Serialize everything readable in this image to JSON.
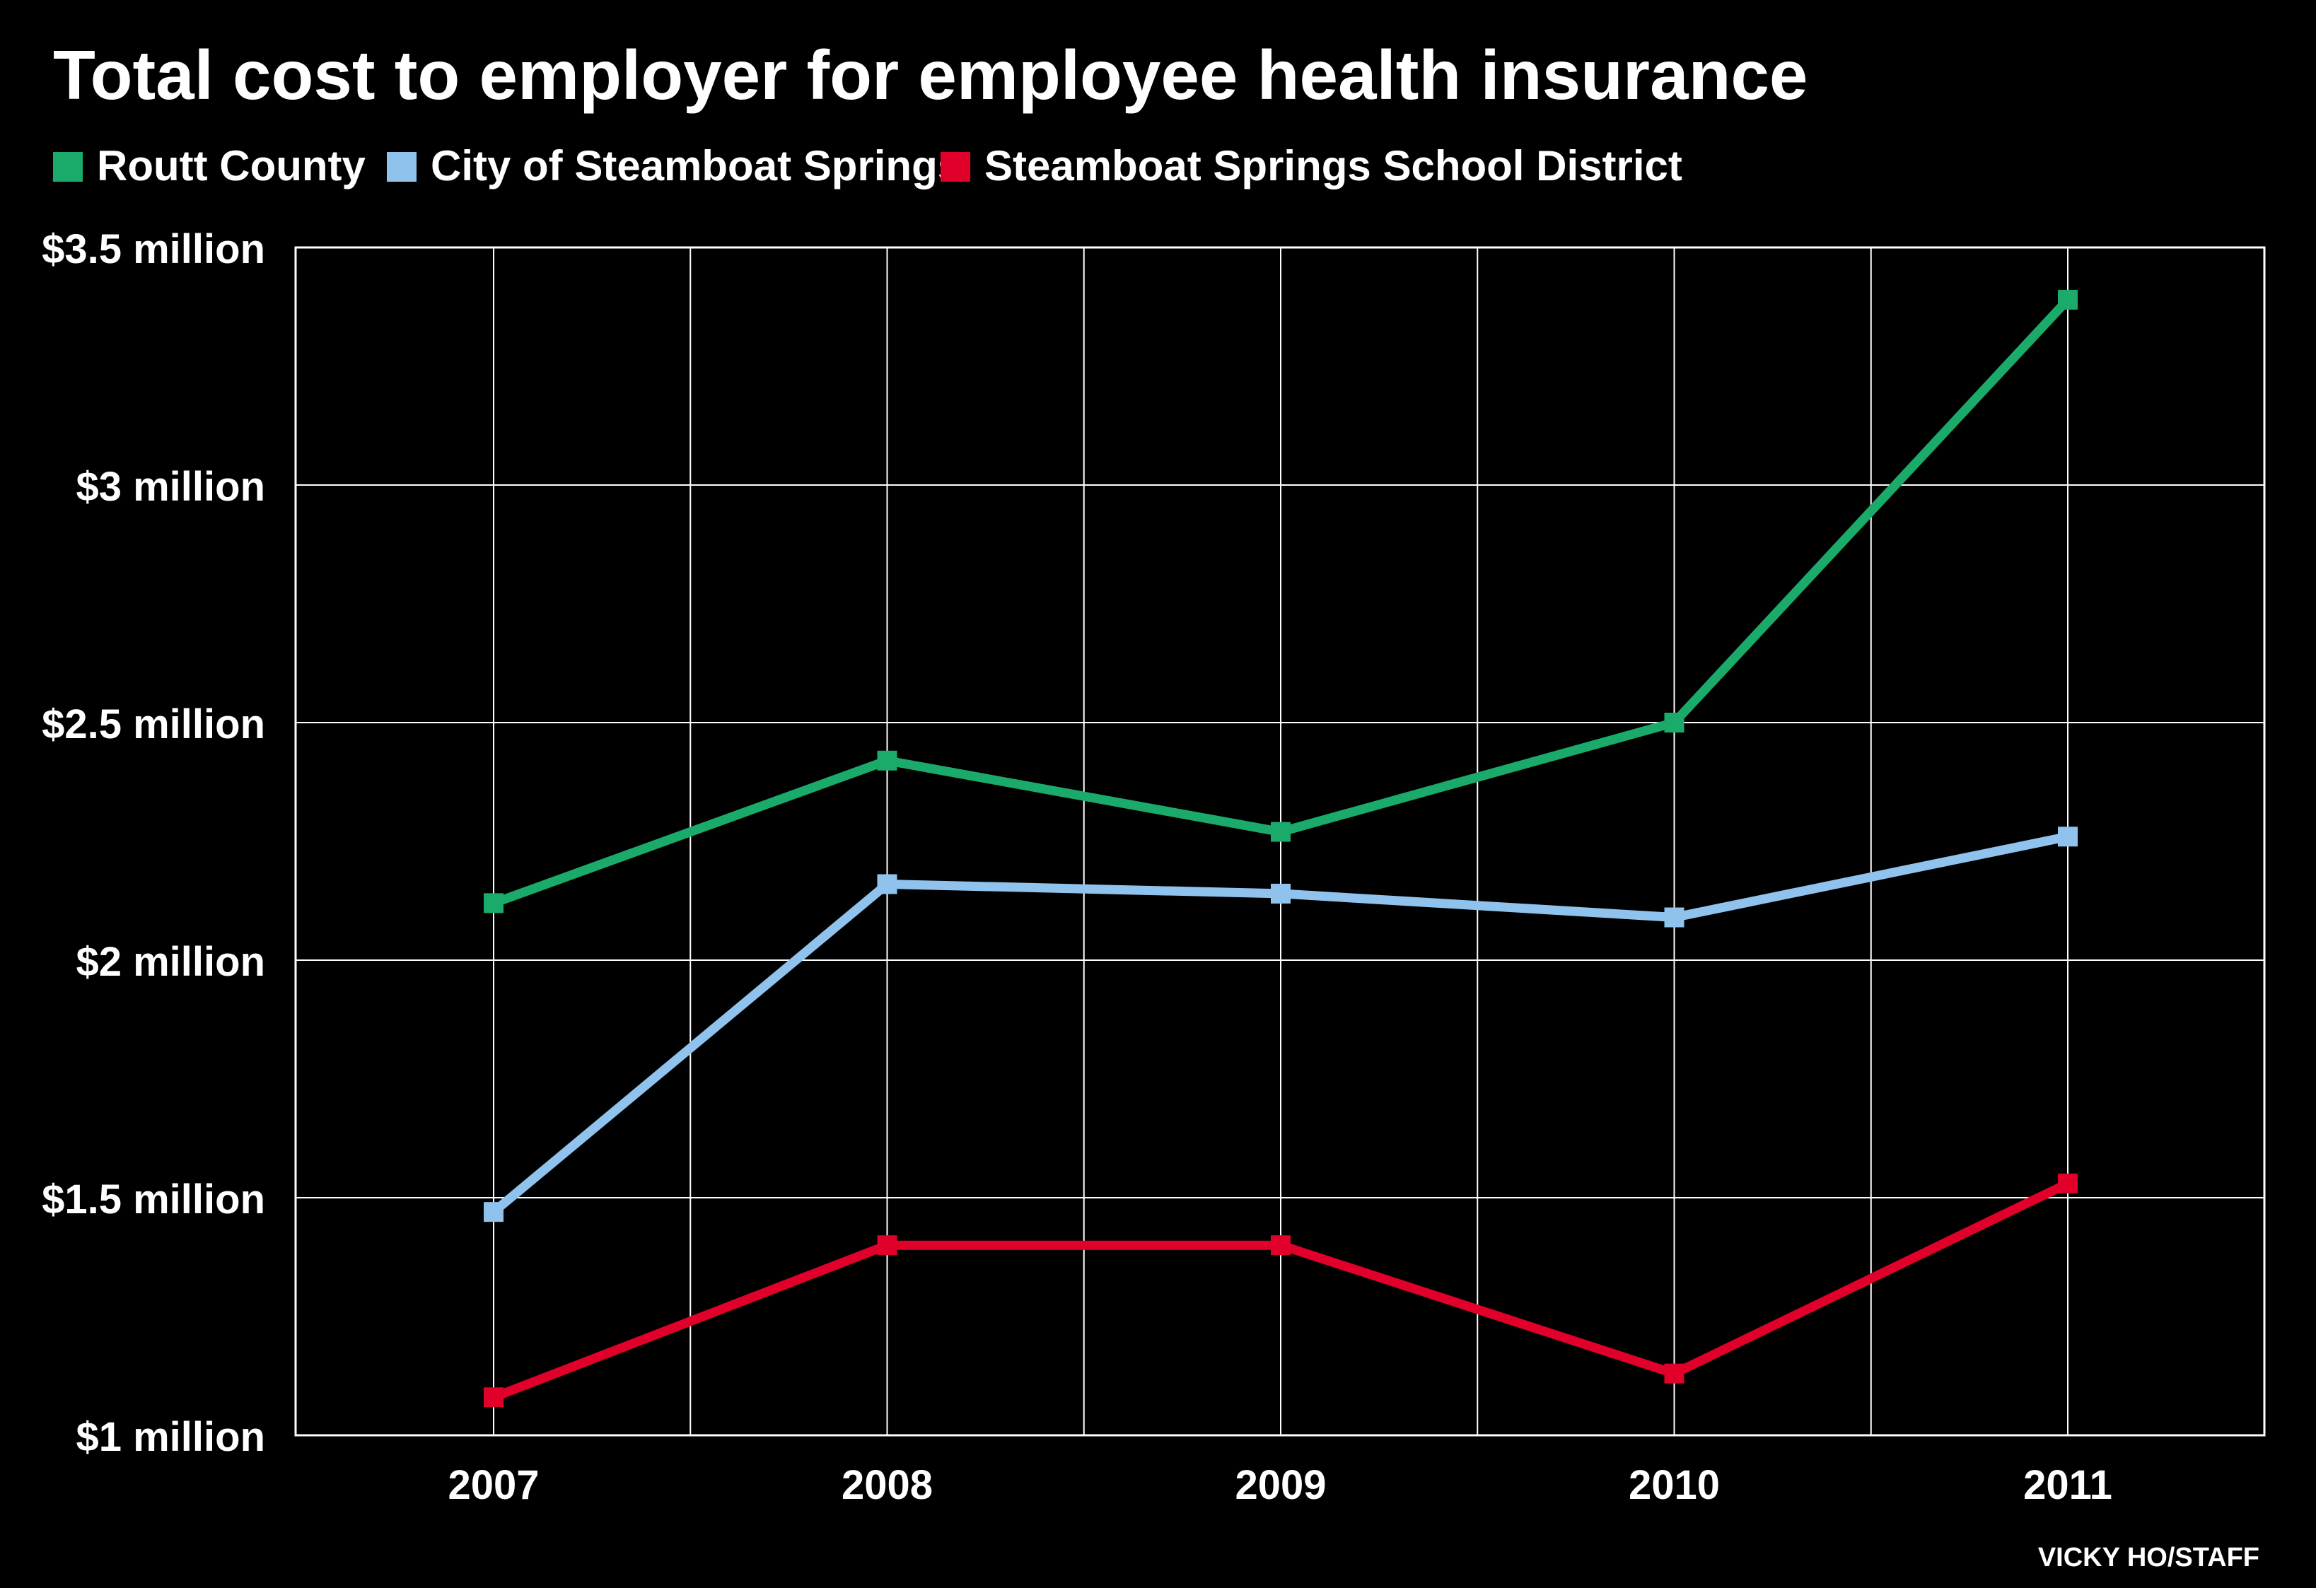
{
  "chart_data": {
    "type": "line",
    "title": "Total cost to employer for employee health insurance",
    "credit": "VICKY HO/STAFF",
    "categories": [
      "2007",
      "2008",
      "2009",
      "2010",
      "2011"
    ],
    "ylim": [
      1,
      3.5
    ],
    "y_ticks": [
      {
        "value": 3.5,
        "label": "$3.5 million"
      },
      {
        "value": 3,
        "label": "$3 million"
      },
      {
        "value": 2.5,
        "label": "$2.5 million"
      },
      {
        "value": 2,
        "label": "$2 million"
      },
      {
        "value": 1.5,
        "label": "$1.5 million"
      },
      {
        "value": 1,
        "label": "$1 million"
      }
    ],
    "grid": true,
    "legend_position": "top-left",
    "series": [
      {
        "name": "Routt County",
        "color": "#1aab6a",
        "values": [
          2.12,
          2.42,
          2.27,
          2.5,
          3.39
        ]
      },
      {
        "name": "City of Steamboat Springs",
        "color": "#8fc3ee",
        "values": [
          1.47,
          2.16,
          2.14,
          2.09,
          2.26
        ]
      },
      {
        "name": "Steamboat Springs School District",
        "color": "#e0002a",
        "values": [
          1.08,
          1.4,
          1.4,
          1.13,
          1.53
        ]
      }
    ]
  }
}
